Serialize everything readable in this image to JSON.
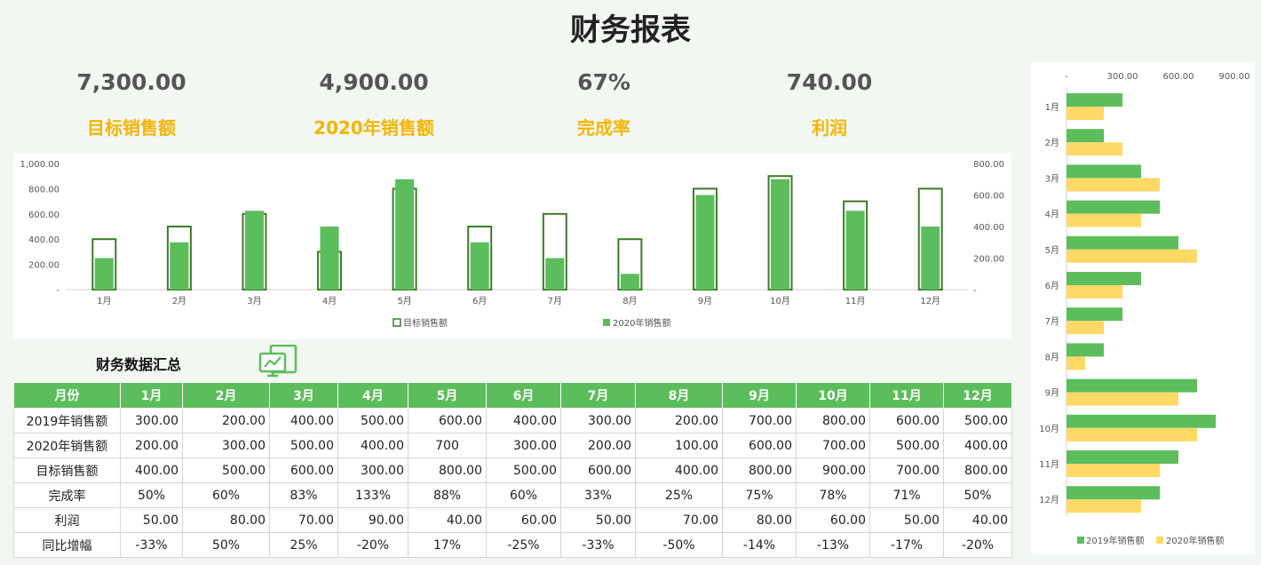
{
  "title": "财务报表",
  "kpis": [
    {
      "value": "7,300.00",
      "label": "目标销售额"
    },
    {
      "value": "4,900.00",
      "label": "2020年销售额"
    },
    {
      "value": "67%",
      "label": "完成率"
    },
    {
      "value": "740.00",
      "label": "利润"
    }
  ],
  "section_title": "财务数据汇总",
  "icon": "monitor-chart-icon",
  "colors": {
    "green": "#5cbd5c",
    "dark_green": "#3d7a2a",
    "yellow": "#ffd966",
    "kpi_label": "#f5b400"
  },
  "table": {
    "header": [
      "月份",
      "1月",
      "2月",
      "3月",
      "4月",
      "5月",
      "6月",
      "7月",
      "8月",
      "9月",
      "10月",
      "11月",
      "12月"
    ],
    "rows": [
      {
        "label": "2019年销售额",
        "cells": [
          "300.00",
          "200.00",
          "400.00",
          "500.00",
          "600.00",
          "400.00",
          "300.00",
          "200.00",
          "700.00",
          "800.00",
          "600.00",
          "500.00"
        ]
      },
      {
        "label": "2020年销售额",
        "cells": [
          "200.00",
          "300.00",
          "500.00",
          "400.00",
          "700",
          "300.00",
          "200.00",
          "100.00",
          "600.00",
          "700.00",
          "500.00",
          "400.00"
        ]
      },
      {
        "label": "目标销售额",
        "cells": [
          "400.00",
          "500.00",
          "600.00",
          "300.00",
          "800.00",
          "500.00",
          "600.00",
          "400.00",
          "800.00",
          "900.00",
          "700.00",
          "800.00"
        ]
      },
      {
        "label": "完成率",
        "cells": [
          "50%",
          "60%",
          "83%",
          "133%",
          "88%",
          "60%",
          "33%",
          "25%",
          "75%",
          "78%",
          "71%",
          "50%"
        ]
      },
      {
        "label": "利润",
        "cells": [
          "50.00",
          "80.00",
          "70.00",
          "90.00",
          "40.00",
          "60.00",
          "50.00",
          "70.00",
          "80.00",
          "60.00",
          "50.00",
          "40.00"
        ]
      },
      {
        "label": "同比增幅",
        "cells": [
          "-33%",
          "50%",
          "25%",
          "-20%",
          "17%",
          "-25%",
          "-33%",
          "-50%",
          "-14%",
          "-13%",
          "-17%",
          "-20%"
        ]
      }
    ]
  },
  "chart_data": [
    {
      "type": "bar",
      "categories": [
        "1月",
        "2月",
        "3月",
        "4月",
        "5月",
        "6月",
        "7月",
        "8月",
        "9月",
        "10月",
        "11月",
        "12月"
      ],
      "series": [
        {
          "name": "目标销售额",
          "axis": "left",
          "values": [
            400,
            500,
            600,
            300,
            800,
            500,
            600,
            400,
            800,
            900,
            700,
            800
          ]
        },
        {
          "name": "2020年销售额",
          "axis": "right",
          "values": [
            200,
            300,
            500,
            400,
            700,
            300,
            200,
            100,
            600,
            700,
            500,
            400
          ]
        }
      ],
      "left_axis": {
        "ylim": [
          0,
          1000
        ],
        "ticks": [
          "-",
          "200.00",
          "400.00",
          "600.00",
          "800.00",
          "1,000.00"
        ]
      },
      "right_axis": {
        "ylim": [
          0,
          800
        ],
        "ticks": [
          "-",
          "200.00",
          "400.00",
          "600.00",
          "800.00"
        ]
      },
      "legend": "bottom"
    },
    {
      "type": "bar",
      "orientation": "horizontal",
      "categories": [
        "1月",
        "2月",
        "3月",
        "4月",
        "5月",
        "6月",
        "7月",
        "8月",
        "9月",
        "10月",
        "11月",
        "12月"
      ],
      "series": [
        {
          "name": "2019年销售额",
          "values": [
            300,
            200,
            400,
            500,
            600,
            400,
            300,
            200,
            700,
            800,
            600,
            500
          ]
        },
        {
          "name": "2020年销售额",
          "values": [
            200,
            300,
            500,
            400,
            700,
            300,
            200,
            100,
            600,
            700,
            500,
            400
          ]
        }
      ],
      "xlim": [
        0,
        900
      ],
      "ticks": [
        "-",
        "300.00",
        "600.00",
        "900.00"
      ],
      "legend": "bottom"
    }
  ]
}
